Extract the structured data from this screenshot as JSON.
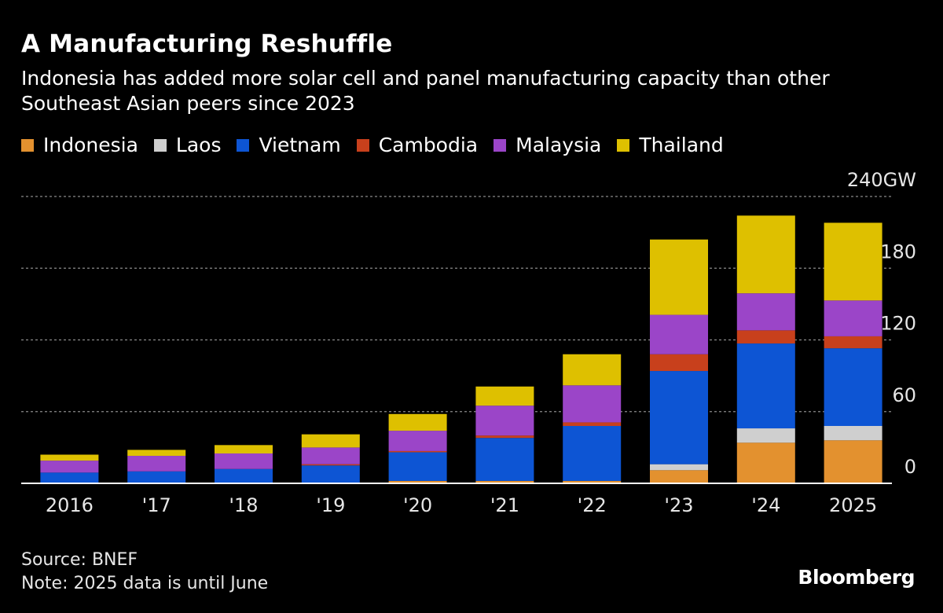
{
  "title": "A Manufacturing Reshuffle",
  "subtitle": "Indonesia has added more solar cell and panel manufacturing capacity than other Southeast Asian peers since 2023",
  "footer": {
    "source": "Source: BNEF",
    "note": "Note: 2025 data is until June",
    "brand": "Bloomberg"
  },
  "chart_data": {
    "type": "bar",
    "stacked": true,
    "categories": [
      "2016",
      "'17",
      "'18",
      "'19",
      "'20",
      "'21",
      "'22",
      "'23",
      "'24",
      "2025"
    ],
    "series": [
      {
        "name": "Indonesia",
        "color": "#e3912f",
        "values": [
          0,
          0,
          0,
          0,
          2,
          2,
          2,
          11,
          34,
          36
        ]
      },
      {
        "name": "Laos",
        "color": "#cfcfcf",
        "values": [
          0,
          0,
          0,
          0,
          0,
          0,
          0,
          5,
          12,
          12
        ]
      },
      {
        "name": "Vietnam",
        "color": "#0d55d4",
        "values": [
          9,
          10,
          12,
          15,
          24,
          36,
          46,
          78,
          71,
          65
        ]
      },
      {
        "name": "Cambodia",
        "color": "#c8401c",
        "values": [
          0,
          0,
          0,
          1,
          1,
          2,
          3,
          14,
          11,
          10
        ]
      },
      {
        "name": "Malaysia",
        "color": "#9b45c8",
        "values": [
          10,
          13,
          13,
          14,
          17,
          25,
          31,
          33,
          31,
          30
        ]
      },
      {
        "name": "Thailand",
        "color": "#dec000",
        "values": [
          5,
          5,
          7,
          11,
          14,
          16,
          26,
          63,
          65,
          65
        ]
      }
    ],
    "y_axis": {
      "ticks": [
        0,
        60,
        120,
        180,
        240
      ],
      "tick_labels": [
        "0",
        "60",
        "120",
        "180",
        "240GW"
      ],
      "ylim": [
        0,
        240
      ],
      "position": "right"
    },
    "grid": true,
    "legend_position": "top-left"
  }
}
